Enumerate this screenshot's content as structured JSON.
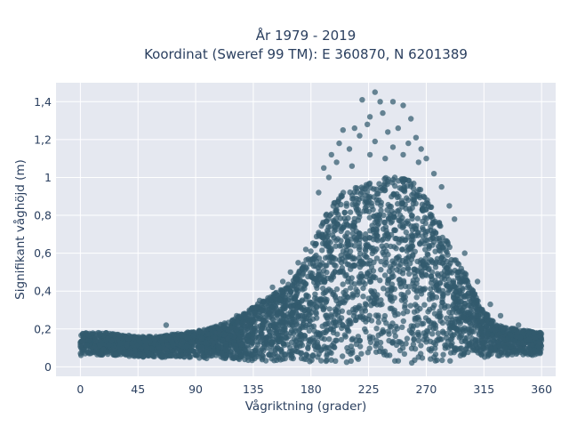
{
  "chart_data": {
    "type": "scatter",
    "title_line1": "År 1979 - 2019",
    "title_line2": "Koordinat (Sweref 99 TM): E 360870, N 6201389",
    "xlabel": "Vågriktning (grader)",
    "ylabel": "Signifikant våghöjd (m)",
    "xlim": [
      -19,
      371
    ],
    "ylim": [
      -0.05,
      1.5
    ],
    "x_ticks": [
      0,
      45,
      90,
      135,
      180,
      225,
      270,
      315,
      360
    ],
    "x_tick_labels": [
      "0",
      "45",
      "90",
      "135",
      "180",
      "225",
      "270",
      "315",
      "360"
    ],
    "y_ticks": [
      0,
      0.2,
      0.4,
      0.6,
      0.8,
      1.0,
      1.2,
      1.4
    ],
    "y_tick_labels": [
      "0",
      "0,2",
      "0,4",
      "0,6",
      "0,8",
      "1",
      "1,2",
      "1,4"
    ],
    "grid": true,
    "marker_color": "#325a6e",
    "background_color": "#e5e8f0",
    "envelope": {
      "direction": [
        0,
        20,
        45,
        60,
        80,
        100,
        120,
        135,
        150,
        165,
        175,
        185,
        195,
        205,
        215,
        225,
        235,
        245,
        255,
        265,
        275,
        285,
        295,
        305,
        315,
        325,
        340,
        360
      ],
      "upper_height": [
        0.18,
        0.18,
        0.16,
        0.16,
        0.18,
        0.2,
        0.25,
        0.32,
        0.38,
        0.45,
        0.55,
        0.72,
        0.85,
        0.92,
        0.95,
        1.0,
        1.0,
        1.0,
        1.0,
        0.95,
        0.85,
        0.68,
        0.55,
        0.45,
        0.3,
        0.22,
        0.2,
        0.18
      ],
      "lower_height": [
        0.06,
        0.06,
        0.05,
        0.05,
        0.05,
        0.04,
        0.04,
        0.03,
        0.03,
        0.03,
        0.02,
        0.02,
        0.02,
        0.02,
        0.02,
        0.02,
        0.02,
        0.02,
        0.02,
        0.02,
        0.03,
        0.03,
        0.03,
        0.04,
        0.05,
        0.05,
        0.06,
        0.06
      ]
    },
    "outliers": [
      {
        "x": 220,
        "y": 1.41
      },
      {
        "x": 230,
        "y": 1.45
      },
      {
        "x": 234,
        "y": 1.4
      },
      {
        "x": 244,
        "y": 1.4
      },
      {
        "x": 252,
        "y": 1.38
      },
      {
        "x": 226,
        "y": 1.32
      },
      {
        "x": 224,
        "y": 1.28
      },
      {
        "x": 236,
        "y": 1.34
      },
      {
        "x": 258,
        "y": 1.31
      },
      {
        "x": 214,
        "y": 1.26
      },
      {
        "x": 205,
        "y": 1.25
      },
      {
        "x": 202,
        "y": 1.18
      },
      {
        "x": 218,
        "y": 1.22
      },
      {
        "x": 262,
        "y": 1.21
      },
      {
        "x": 240,
        "y": 1.24
      },
      {
        "x": 248,
        "y": 1.26
      },
      {
        "x": 230,
        "y": 1.19
      },
      {
        "x": 266,
        "y": 1.15
      },
      {
        "x": 196,
        "y": 1.12
      },
      {
        "x": 210,
        "y": 1.15
      },
      {
        "x": 244,
        "y": 1.16
      },
      {
        "x": 256,
        "y": 1.18
      },
      {
        "x": 270,
        "y": 1.1
      },
      {
        "x": 200,
        "y": 1.08
      },
      {
        "x": 226,
        "y": 1.12
      },
      {
        "x": 238,
        "y": 1.1
      },
      {
        "x": 252,
        "y": 1.12
      },
      {
        "x": 264,
        "y": 1.08
      },
      {
        "x": 190,
        "y": 1.05
      },
      {
        "x": 212,
        "y": 1.06
      },
      {
        "x": 276,
        "y": 1.02
      },
      {
        "x": 194,
        "y": 1.0
      },
      {
        "x": 282,
        "y": 0.95
      },
      {
        "x": 288,
        "y": 0.85
      },
      {
        "x": 186,
        "y": 0.92
      },
      {
        "x": 292,
        "y": 0.78
      },
      {
        "x": 67,
        "y": 0.22
      },
      {
        "x": 108,
        "y": 0.2
      },
      {
        "x": 122,
        "y": 0.27
      },
      {
        "x": 158,
        "y": 0.45
      },
      {
        "x": 170,
        "y": 0.55
      },
      {
        "x": 140,
        "y": 0.35
      },
      {
        "x": 176,
        "y": 0.62
      },
      {
        "x": 300,
        "y": 0.6
      },
      {
        "x": 310,
        "y": 0.45
      },
      {
        "x": 320,
        "y": 0.33
      },
      {
        "x": 328,
        "y": 0.27
      },
      {
        "x": 342,
        "y": 0.22
      },
      {
        "x": 150,
        "y": 0.42
      },
      {
        "x": 164,
        "y": 0.5
      }
    ]
  }
}
